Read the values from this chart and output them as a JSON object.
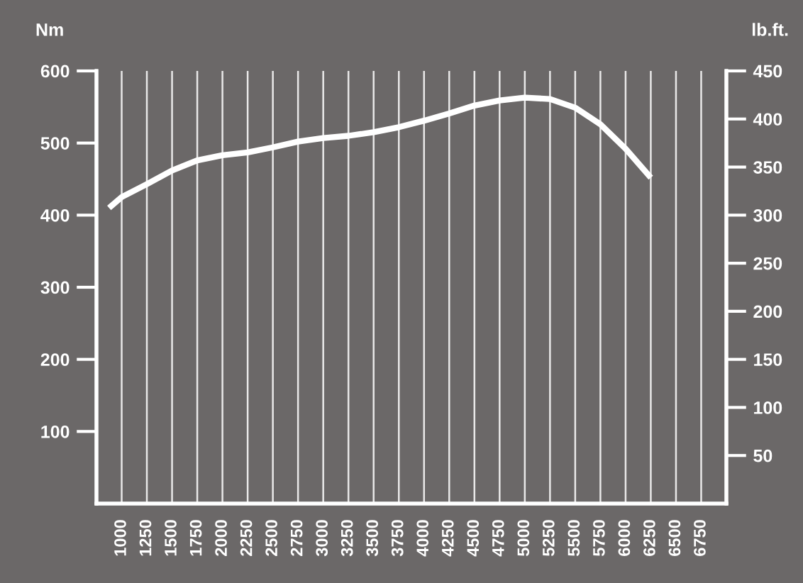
{
  "chart_data": {
    "type": "line",
    "ylabel": "Nm",
    "y2label": "lb.ft.",
    "x": [
      875,
      1000,
      1250,
      1500,
      1750,
      2000,
      2250,
      2500,
      2750,
      3000,
      3250,
      3500,
      3750,
      4000,
      4250,
      4500,
      4750,
      5000,
      5250,
      5500,
      5750,
      6000,
      6250
    ],
    "series": [
      {
        "color": "#ffffff",
        "values": [
          410,
          425,
          443,
          462,
          476,
          483,
          487,
          494,
          502,
          507,
          510,
          515,
          522,
          531,
          541,
          552,
          559,
          563,
          561,
          549,
          526,
          492,
          452
        ]
      }
    ],
    "xlim": [
      750,
      7000
    ],
    "xticks": [
      1000,
      1250,
      1500,
      1750,
      2000,
      2250,
      2500,
      2750,
      3000,
      3250,
      3500,
      3750,
      4000,
      4250,
      4500,
      4750,
      5000,
      5250,
      5500,
      5750,
      6000,
      6250,
      6500,
      6750
    ],
    "ylim": [
      0,
      600
    ],
    "yticks": [
      100,
      200,
      300,
      400,
      500,
      600
    ],
    "y2lim": [
      0,
      450
    ],
    "y2ticks": [
      50,
      100,
      150,
      200,
      250,
      300,
      350,
      400,
      450
    ],
    "grid": "x",
    "marker": "none",
    "line_style": "solid"
  }
}
